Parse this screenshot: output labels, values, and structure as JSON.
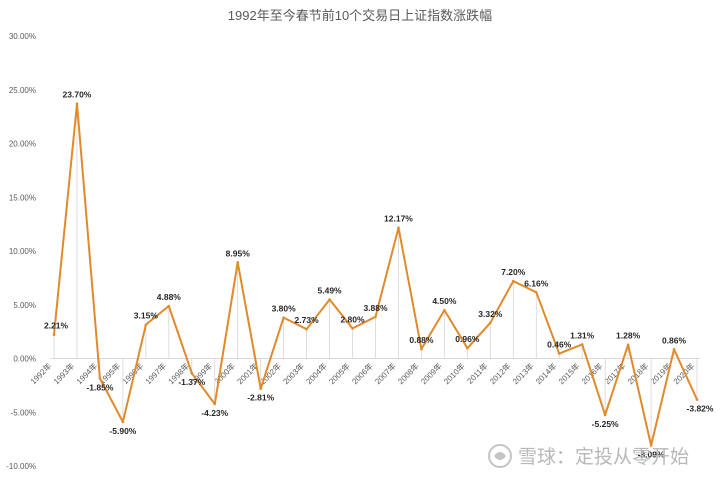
{
  "chart_data": {
    "type": "line",
    "title": "1992年至今春节前10个交易日上证指数涨跌幅",
    "xlabel": "",
    "ylabel": "",
    "ylim": [
      -0.1,
      0.3
    ],
    "y_tick_values": [
      -0.1,
      -0.05,
      0.0,
      0.05,
      0.1,
      0.15,
      0.2,
      0.25,
      0.3
    ],
    "y_tick_labels": [
      "-10.00%",
      "-5.00%",
      "0.00%",
      "5.00%",
      "10.00%",
      "15.00%",
      "20.00%",
      "25.00%",
      "30.00%"
    ],
    "grid": false,
    "drop_lines": true,
    "line_color": "#e08a2c",
    "axis_color": "#d9d9d9",
    "categories": [
      "1992年",
      "1993年",
      "1994年",
      "1995年",
      "1996年",
      "1997年",
      "1998年",
      "1999年",
      "2000年",
      "2001年",
      "2002年",
      "2003年",
      "2004年",
      "2005年",
      "2006年",
      "2007年",
      "2008年",
      "2009年",
      "2010年",
      "2011年",
      "2012年",
      "2013年",
      "2014年",
      "2015年",
      "2016年",
      "2017年",
      "2018年",
      "2019年",
      "2020年"
    ],
    "series": [
      {
        "values": [
          0.0221,
          0.237,
          -0.0185,
          -0.059,
          0.0315,
          0.0488,
          -0.0137,
          -0.0423,
          0.0895,
          -0.0281,
          0.038,
          0.0273,
          0.0549,
          0.028,
          0.0388,
          0.1217,
          0.0088,
          0.045,
          0.0096,
          0.0332,
          0.072,
          0.0616,
          0.0046,
          0.0131,
          -0.0525,
          0.0128,
          -0.0809,
          0.0086,
          -0.0382
        ],
        "labels": [
          "2.21%",
          "23.70%",
          "-1.85%",
          "-5.90%",
          "3.15%",
          "4.88%",
          "-1.37%",
          "-4.23%",
          "8.95%",
          "-2.81%",
          "3.80%",
          "2.73%",
          "5.49%",
          "2.80%",
          "3.88%",
          "12.17%",
          "0.88%",
          "4.50%",
          "0.96%",
          "3.32%",
          "7.20%",
          "6.16%",
          "0.46%",
          "1.31%",
          "-5.25%",
          "1.28%",
          "-8.09%",
          "0.86%",
          "-3.82%"
        ]
      }
    ]
  },
  "watermark": {
    "text": "雪球：定投从零开始"
  }
}
